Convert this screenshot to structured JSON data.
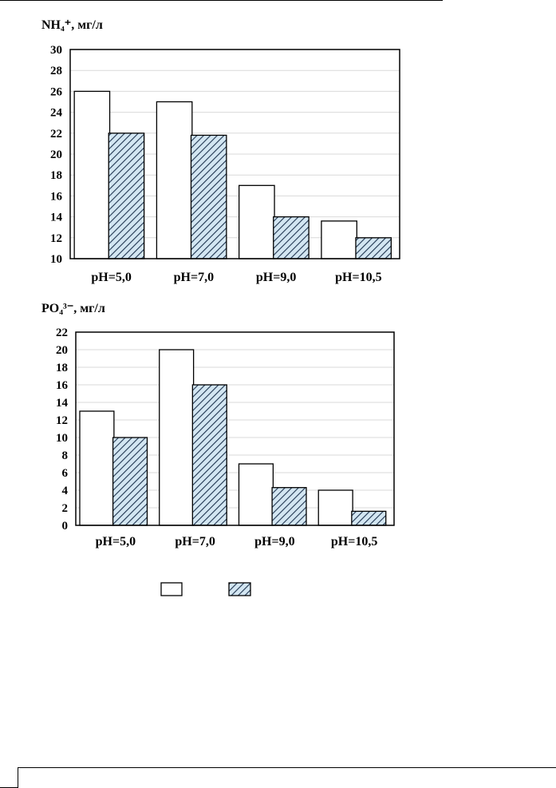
{
  "chart_data": [
    {
      "type": "bar",
      "title": "NH₄⁺, мг/л",
      "categories": [
        "pH=5,0",
        "pH=7,0",
        "pH=9,0",
        "pH=10,5"
      ],
      "series": [
        {
          "values": [
            26,
            25,
            17,
            13.6
          ],
          "fill": "#ffffff",
          "pattern": "none"
        },
        {
          "values": [
            22,
            21.8,
            14,
            12
          ],
          "fill": "#d3e6f2",
          "pattern": "diagonal-hatch"
        }
      ],
      "ylim": [
        10,
        30
      ],
      "yticks": [
        10,
        12,
        14,
        16,
        18,
        20,
        22,
        24,
        26,
        28,
        30
      ],
      "grid": true
    },
    {
      "type": "bar",
      "title": "PO₄³⁻, мг/л",
      "categories": [
        "pH=5,0",
        "pH=7,0",
        "pH=9,0",
        "pH=10,5"
      ],
      "series": [
        {
          "values": [
            13,
            20,
            7,
            4
          ],
          "fill": "#ffffff",
          "pattern": "none"
        },
        {
          "values": [
            10,
            16,
            4.3,
            1.6
          ],
          "fill": "#d3e6f2",
          "pattern": "diagonal-hatch"
        }
      ],
      "ylim": [
        0,
        22
      ],
      "yticks": [
        0,
        2,
        4,
        6,
        8,
        10,
        12,
        14,
        16,
        18,
        20,
        22
      ],
      "grid": true
    }
  ],
  "legend": {
    "entries": [
      {
        "swatch": "white"
      },
      {
        "swatch": "hatched"
      }
    ]
  },
  "colors": {
    "grid": "#d9d9d9",
    "hatch_line": "#1f3550",
    "hatch_bg": "#d3e6f2",
    "axis": "#000000"
  }
}
